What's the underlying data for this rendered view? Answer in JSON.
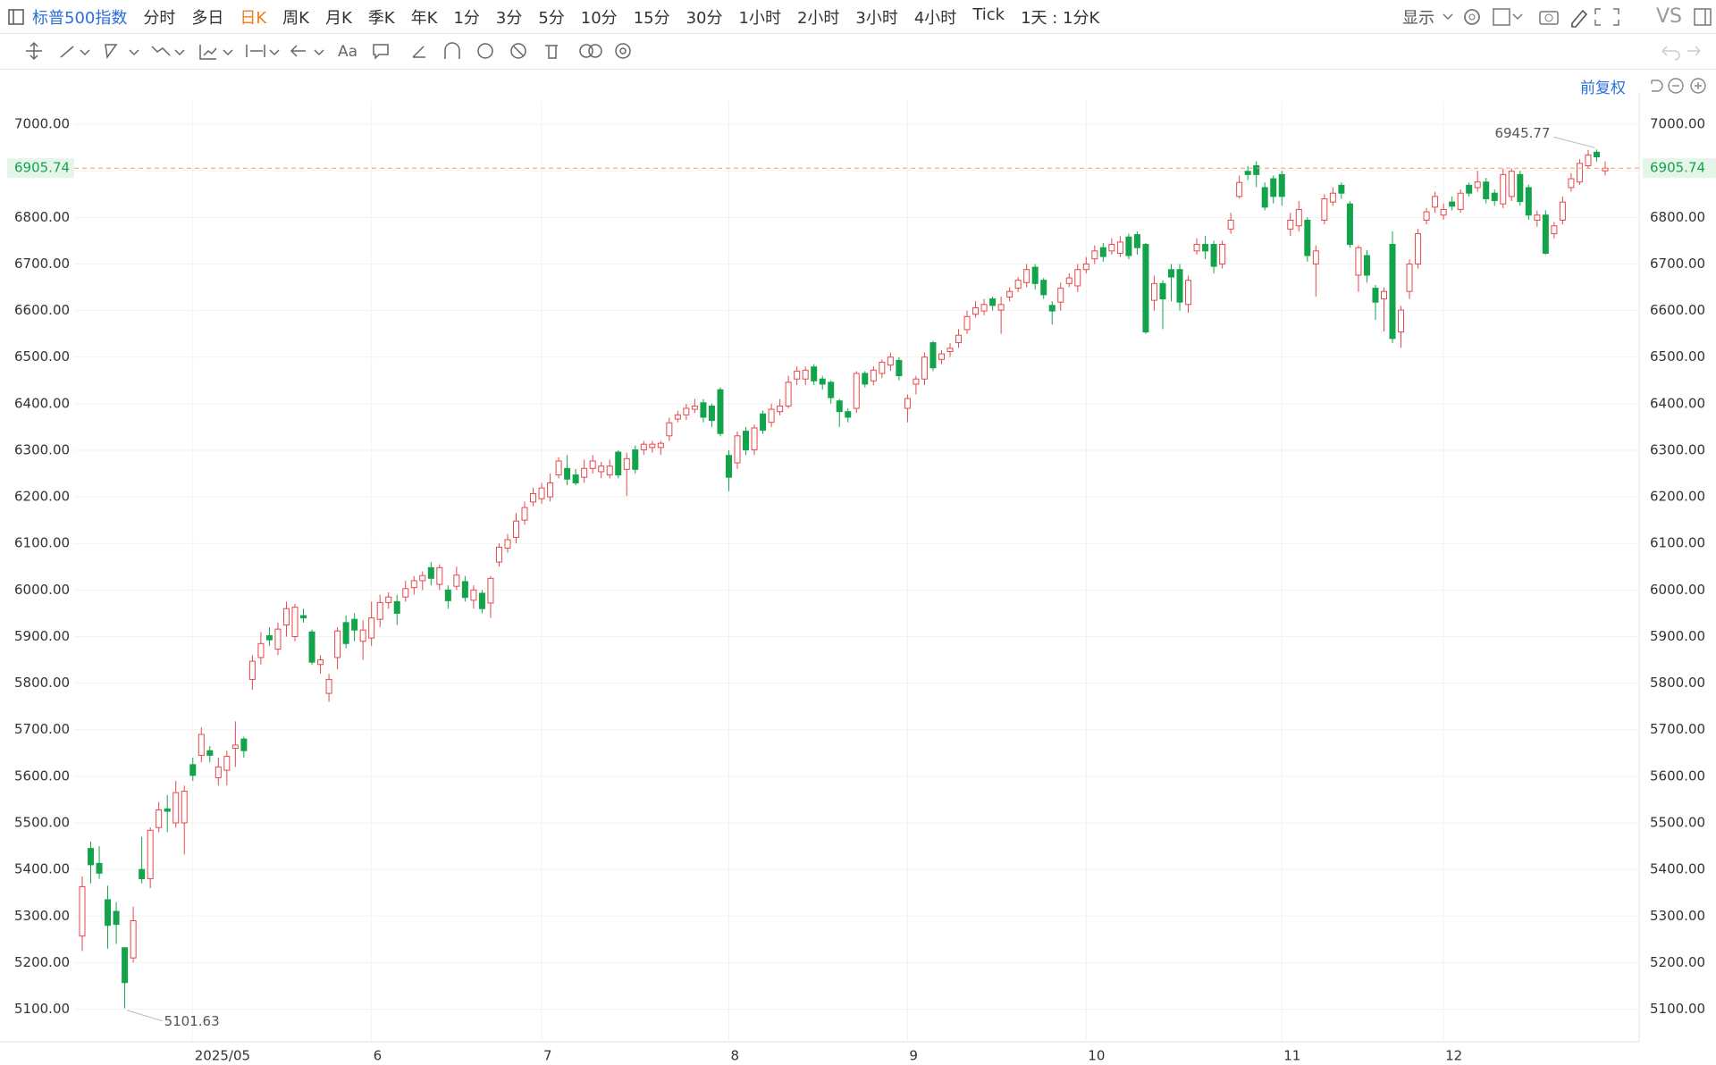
{
  "toolbar": {
    "symbol": "标普500指数",
    "periods": [
      "分时",
      "多日",
      "日K",
      "周K",
      "月K",
      "季K",
      "年K",
      "1分",
      "3分",
      "5分",
      "10分",
      "15分",
      "30分",
      "1小时",
      "2小时",
      "3小时",
      "4小时",
      "Tick",
      "1天 : 1分K"
    ],
    "active": "日K",
    "display": "显示",
    "compare": "VS",
    "adjust": "前复权"
  },
  "chart_data": {
    "type": "candlestick",
    "up_color": "#e8474a",
    "down_color": "#13a44b",
    "last_price_color": "#f29b6b",
    "grid": true,
    "ylim": [
      5030,
      7050
    ],
    "yticks": [
      {
        "value": 5100,
        "label": "5100.00"
      },
      {
        "value": 5200,
        "label": "5200.00"
      },
      {
        "value": 5300,
        "label": "5300.00"
      },
      {
        "value": 5400,
        "label": "5400.00"
      },
      {
        "value": 5500,
        "label": "5500.00"
      },
      {
        "value": 5600,
        "label": "5600.00"
      },
      {
        "value": 5700,
        "label": "5700.00"
      },
      {
        "value": 5800,
        "label": "5800.00"
      },
      {
        "value": 5900,
        "label": "5900.00"
      },
      {
        "value": 6000,
        "label": "6000.00"
      },
      {
        "value": 6100,
        "label": "6100.00"
      },
      {
        "value": 6200,
        "label": "6200.00"
      },
      {
        "value": 6300,
        "label": "6300.00"
      },
      {
        "value": 6400,
        "label": "6400.00"
      },
      {
        "value": 6500,
        "label": "6500.00"
      },
      {
        "value": 6600,
        "label": "6600.00"
      },
      {
        "value": 6700,
        "label": "6700.00"
      },
      {
        "value": 6800,
        "label": "6800.00"
      },
      {
        "value": 6900,
        "label": "6900.00"
      },
      {
        "value": 7000,
        "label": "7000.00"
      }
    ],
    "categories": [
      null,
      null,
      null,
      null,
      null,
      null,
      null,
      null,
      null,
      null,
      null,
      null,
      null,
      "2025/05",
      null,
      null,
      null,
      null,
      null,
      null,
      null,
      null,
      null,
      null,
      null,
      null,
      null,
      null,
      null,
      null,
      null,
      null,
      null,
      null,
      "6",
      null,
      null,
      null,
      null,
      null,
      null,
      null,
      null,
      null,
      null,
      null,
      null,
      null,
      null,
      null,
      null,
      null,
      null,
      null,
      "7",
      null,
      null,
      null,
      null,
      null,
      null,
      null,
      null,
      null,
      null,
      null,
      null,
      null,
      null,
      null,
      null,
      null,
      null,
      null,
      null,
      null,
      "8",
      null,
      null,
      null,
      null,
      null,
      null,
      null,
      null,
      null,
      null,
      null,
      null,
      null,
      null,
      null,
      null,
      null,
      null,
      null,
      null,
      "9",
      null,
      null,
      null,
      null,
      null,
      null,
      null,
      null,
      null,
      null,
      null,
      null,
      null,
      null,
      null,
      null,
      null,
      null,
      null,
      null,
      "10",
      null,
      null,
      null,
      null,
      null,
      null,
      null,
      null,
      null,
      null,
      null,
      null,
      null,
      null,
      null,
      null,
      null,
      null,
      null,
      null,
      null,
      null,
      "11",
      null,
      null,
      null,
      null,
      null,
      null,
      null,
      null,
      null,
      null,
      null,
      null,
      null,
      null,
      null,
      null,
      null,
      null,
      "12",
      null,
      null,
      null,
      null,
      null,
      null,
      null,
      null,
      null,
      null,
      null,
      null,
      null,
      null,
      null,
      null,
      null,
      null,
      null
    ],
    "open": [
      5257,
      5445,
      5413,
      5335,
      5310,
      5232,
      5210,
      5400,
      5380,
      5490,
      5530,
      5500,
      5500,
      5625,
      5645,
      5655,
      5597,
      5613,
      5660,
      5680,
      5808,
      5855,
      5902,
      5873,
      5925,
      5900,
      5945,
      5910,
      5840,
      5778,
      5855,
      5930,
      5937,
      5890,
      5897,
      5937,
      5973,
      5975,
      5985,
      6005,
      6020,
      6048,
      6012,
      6000,
      6008,
      6018,
      5978,
      5993,
      5972,
      6060,
      6090,
      6113,
      6150,
      6189,
      6196,
      6200,
      6247,
      6261,
      6247,
      6242,
      6261,
      6254,
      6247,
      6296,
      6259,
      6301,
      6301,
      6306,
      6306,
      6331,
      6367,
      6376,
      6388,
      6402,
      6395,
      6430,
      6289,
      6273,
      6341,
      6301,
      6378,
      6360,
      6383,
      6395,
      6453,
      6453,
      6479,
      6453,
      6446,
      6406,
      6383,
      6390,
      6465,
      6449,
      6465,
      6483,
      6493,
      6390,
      6442,
      6453,
      6531,
      6495,
      6512,
      6531,
      6559,
      6592,
      6599,
      6625,
      6601,
      6629,
      6648,
      6660,
      6693,
      6665,
      6611,
      6618,
      6658,
      6653,
      6688,
      6711,
      6735,
      6728,
      6723,
      6758,
      6763,
      6742,
      6622,
      6658,
      6688,
      6688,
      6613,
      6728,
      6742,
      6742,
      6700,
      6775,
      6845,
      6899,
      6911,
      6864,
      6883,
      6892,
      6775,
      6782,
      6794,
      6700,
      6794,
      6833,
      6869,
      6829,
      6676,
      6718,
      6648,
      6625,
      6742,
      6554,
      6641,
      6700,
      6794,
      6822,
      6805,
      6833,
      6817,
      6869,
      6864,
      6876,
      6852,
      6829,
      6845,
      6892,
      6864,
      6794,
      6805,
      6765,
      6794,
      6864,
      6876,
      6911,
      6940,
      6900
    ],
    "high": [
      5385,
      5460,
      5450,
      5365,
      5330,
      5232,
      5320,
      5470,
      5490,
      5545,
      5560,
      5590,
      5580,
      5640,
      5705,
      5665,
      5640,
      5655,
      5718,
      5685,
      5860,
      5910,
      5920,
      5930,
      5975,
      5970,
      5960,
      5915,
      5860,
      5820,
      5920,
      5945,
      5950,
      5935,
      5975,
      5990,
      5995,
      5990,
      6020,
      6030,
      6040,
      6060,
      6055,
      6010,
      6050,
      6030,
      6010,
      6000,
      6030,
      6100,
      6120,
      6165,
      6190,
      6220,
      6230,
      6250,
      6285,
      6290,
      6260,
      6280,
      6290,
      6275,
      6280,
      6300,
      6295,
      6310,
      6320,
      6320,
      6320,
      6370,
      6385,
      6400,
      6410,
      6410,
      6400,
      6435,
      6300,
      6340,
      6350,
      6355,
      6385,
      6400,
      6410,
      6460,
      6480,
      6480,
      6485,
      6460,
      6450,
      6410,
      6390,
      6470,
      6470,
      6480,
      6495,
      6510,
      6500,
      6420,
      6460,
      6510,
      6535,
      6515,
      6530,
      6560,
      6600,
      6620,
      6625,
      6630,
      6630,
      6650,
      6672,
      6700,
      6700,
      6670,
      6620,
      6660,
      6680,
      6700,
      6715,
      6740,
      6745,
      6755,
      6760,
      6765,
      6770,
      6745,
      6675,
      6665,
      6700,
      6700,
      6675,
      6755,
      6760,
      6750,
      6750,
      6810,
      6890,
      6910,
      6920,
      6875,
      6890,
      6900,
      6810,
      6835,
      6800,
      6740,
      6850,
      6865,
      6875,
      6835,
      6740,
      6730,
      6655,
      6650,
      6770,
      6610,
      6710,
      6775,
      6820,
      6855,
      6830,
      6845,
      6860,
      6875,
      6900,
      6885,
      6860,
      6905,
      6905,
      6900,
      6870,
      6815,
      6815,
      6790,
      6845,
      6895,
      6925,
      6945,
      6945.77,
      6920
    ],
    "low": [
      5225,
      5370,
      5380,
      5230,
      5240,
      5101.63,
      5200,
      5370,
      5360,
      5480,
      5480,
      5490,
      5432,
      5590,
      5630,
      5630,
      5580,
      5580,
      5620,
      5640,
      5786,
      5840,
      5880,
      5860,
      5900,
      5890,
      5930,
      5840,
      5820,
      5760,
      5830,
      5875,
      5890,
      5850,
      5880,
      5920,
      5960,
      5925,
      5975,
      5990,
      6000,
      6010,
      6000,
      5960,
      6000,
      5975,
      5960,
      5950,
      5940,
      6050,
      6080,
      6100,
      6140,
      6180,
      6185,
      6190,
      6240,
      6225,
      6225,
      6230,
      6250,
      6240,
      6240,
      6240,
      6202,
      6250,
      6290,
      6295,
      6290,
      6320,
      6360,
      6365,
      6380,
      6360,
      6350,
      6330,
      6212,
      6260,
      6290,
      6290,
      6335,
      6350,
      6375,
      6390,
      6440,
      6440,
      6440,
      6430,
      6400,
      6350,
      6360,
      6380,
      6435,
      6440,
      6455,
      6470,
      6450,
      6360,
      6420,
      6440,
      6470,
      6485,
      6500,
      6520,
      6550,
      6585,
      6590,
      6600,
      6550,
      6620,
      6640,
      6650,
      6645,
      6625,
      6570,
      6600,
      6650,
      6640,
      6680,
      6700,
      6705,
      6720,
      6715,
      6710,
      6720,
      6550,
      6600,
      6560,
      6620,
      6600,
      6595,
      6720,
      6710,
      6680,
      6690,
      6765,
      6840,
      6880,
      6865,
      6815,
      6830,
      6825,
      6760,
      6770,
      6705,
      6630,
      6785,
      6825,
      6840,
      6735,
      6640,
      6660,
      6580,
      6555,
      6530,
      6520,
      6625,
      6690,
      6785,
      6810,
      6795,
      6815,
      6810,
      6845,
      6855,
      6830,
      6825,
      6820,
      6835,
      6825,
      6795,
      6780,
      6720,
      6755,
      6785,
      6855,
      6870,
      6905,
      6920,
      6890
    ],
    "close": [
      5363,
      5410,
      5392,
      5280,
      5282,
      5157,
      5290,
      5380,
      5484,
      5528,
      5525,
      5565,
      5568,
      5602,
      5690,
      5645,
      5620,
      5643,
      5667,
      5655,
      5847,
      5885,
      5893,
      5916,
      5960,
      5963,
      5940,
      5845,
      5850,
      5808,
      5912,
      5885,
      5914,
      5914,
      5940,
      5973,
      5985,
      5950,
      6003,
      6020,
      6031,
      6025,
      6048,
      5977,
      6032,
      5984,
      6000,
      5960,
      6025,
      6092,
      6108,
      6148,
      6177,
      6207,
      6219,
      6230,
      6277,
      6238,
      6230,
      6261,
      6277,
      6266,
      6266,
      6247,
      6282,
      6259,
      6313,
      6313,
      6315,
      6359,
      6376,
      6390,
      6395,
      6371,
      6364,
      6336,
      6242,
      6331,
      6301,
      6348,
      6343,
      6388,
      6395,
      6446,
      6470,
      6472,
      6449,
      6442,
      6413,
      6383,
      6371,
      6465,
      6442,
      6472,
      6489,
      6500,
      6460,
      6411,
      6453,
      6500,
      6477,
      6507,
      6519,
      6547,
      6587,
      6606,
      6613,
      6611,
      6613,
      6641,
      6665,
      6688,
      6658,
      6634,
      6599,
      6648,
      6670,
      6688,
      6700,
      6728,
      6716,
      6742,
      6747,
      6718,
      6735,
      6554,
      6658,
      6625,
      6672,
      6618,
      6665,
      6742,
      6728,
      6695,
      6742,
      6794,
      6875,
      6892,
      6892,
      6822,
      6845,
      6845,
      6794,
      6817,
      6718,
      6728,
      6840,
      6852,
      6852,
      6742,
      6735,
      6676,
      6618,
      6641,
      6540,
      6601,
      6700,
      6765,
      6812,
      6845,
      6817,
      6824,
      6852,
      6852,
      6876,
      6840,
      6836,
      6892,
      6899,
      6834,
      6805,
      6805,
      6723,
      6782,
      6833,
      6883,
      6916,
      6934,
      6930,
      6905.74
    ]
  }
}
